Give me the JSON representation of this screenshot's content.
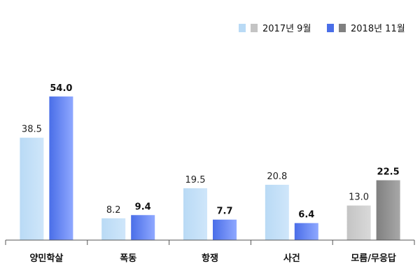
{
  "chart_data": {
    "type": "bar",
    "categories": [
      "양민학살",
      "폭동",
      "항쟁",
      "사건",
      "모름/무응답"
    ],
    "series": [
      {
        "name": "2017년 9월",
        "values": [
          38.5,
          8.2,
          19.5,
          20.8,
          13.0
        ],
        "labels": [
          "38.5",
          "8.2",
          "19.5",
          "20.8",
          "13.0"
        ]
      },
      {
        "name": "2018년 11월",
        "values": [
          54.0,
          9.4,
          7.7,
          6.4,
          22.5
        ],
        "labels": [
          "54.0",
          "9.4",
          "7.7",
          "6.4",
          "22.5"
        ]
      }
    ],
    "ylim": [
      0,
      60
    ],
    "grid": false,
    "legend_position": "top-right",
    "colors": {
      "s2017": "#b9daf5",
      "s2017_end": "#cfe6fa",
      "s2018": "#4a6ee8",
      "s2018_end": "#8fa8ff",
      "nr2017": "#c4c4c4",
      "nr2017_end": "#d9d9d9",
      "nr2018": "#808080",
      "nr2018_end": "#a8a8a8",
      "axis": "#555555"
    }
  }
}
